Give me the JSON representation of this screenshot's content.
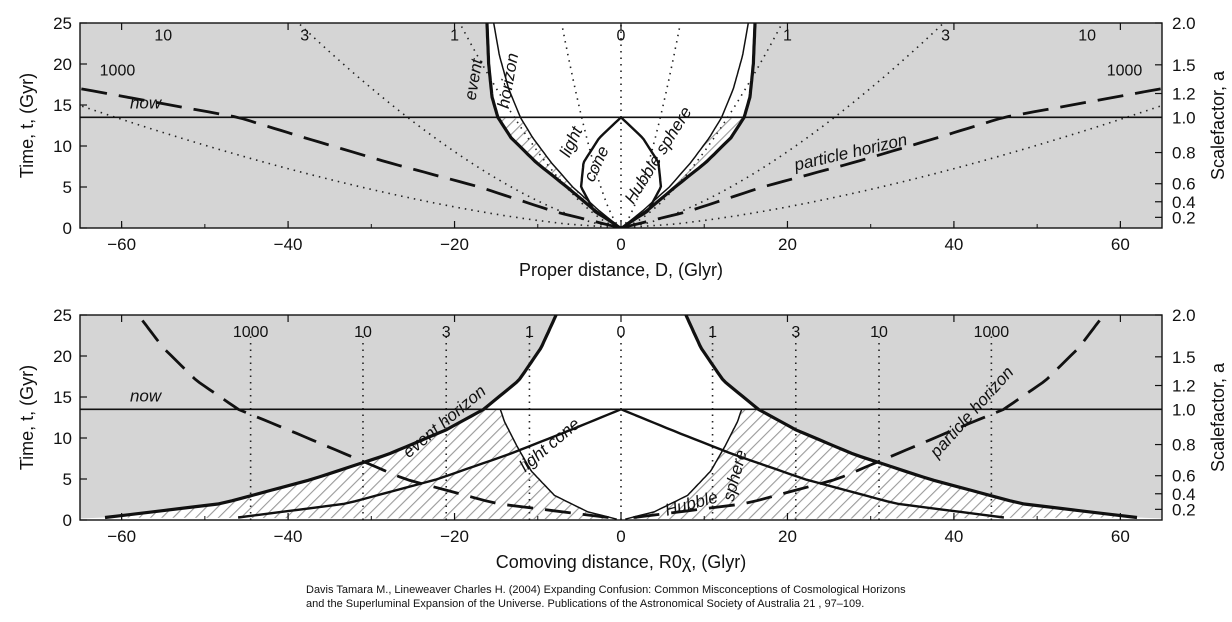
{
  "chart_data": [
    {
      "type": "line",
      "xlabel": "Proper distance, D, (Glyr)",
      "ylabel": "Time, t, (Gyr)",
      "y2label": "Scalefactor, a",
      "xlim": [
        -65,
        65
      ],
      "ylim": [
        0,
        25
      ],
      "xticks": [
        -60,
        -40,
        -20,
        0,
        20,
        40,
        60
      ],
      "yticks": [
        0,
        5,
        10,
        15,
        20,
        25
      ],
      "scalefactor_ticks": [
        0.2,
        0.4,
        0.6,
        0.8,
        1.0,
        1.2,
        1.5,
        2.0
      ],
      "redshift_labels": [
        "10",
        "3",
        "1",
        "0",
        "1",
        "3",
        "10",
        "1000",
        "1000"
      ],
      "annotations": [
        "now",
        "event",
        "horizon",
        "light",
        "cone",
        "Hubble sphere",
        "particle horizon"
      ],
      "now_t": 13.5,
      "series": [
        {
          "curve": "event horizon",
          "t": [
            0.3,
            2,
            5,
            8,
            11,
            13.5,
            16,
            20,
            25
          ],
          "x": [
            0.5,
            3,
            6.5,
            10.2,
            13.2,
            14.8,
            15.5,
            15.9,
            16.1
          ]
        },
        {
          "curve": "light cone",
          "t": [
            0,
            2,
            5,
            8,
            11,
            13.5
          ],
          "x": [
            0,
            3.2,
            4.8,
            4.5,
            2.6,
            0
          ]
        },
        {
          "curve": "Hubble sphere",
          "t": [
            0,
            2,
            5,
            8,
            11,
            13.5,
            17,
            21,
            25
          ],
          "x": [
            0,
            2.5,
            5.8,
            8.4,
            10.6,
            12.1,
            13.5,
            14.6,
            15.3
          ]
        },
        {
          "curve": "particle horizon",
          "t": [
            0,
            2,
            5,
            8,
            11,
            13.5,
            17
          ],
          "x": [
            0,
            8,
            17,
            28,
            38,
            46,
            65
          ]
        }
      ]
    },
    {
      "type": "line",
      "xlabel": "Comoving distance, R0χ, (Glyr)",
      "ylabel": "Time, t, (Gyr)",
      "y2label": "Scalefactor, a",
      "xlim": [
        -65,
        65
      ],
      "ylim": [
        0,
        25
      ],
      "xticks": [
        -60,
        -40,
        -20,
        0,
        20,
        40,
        60
      ],
      "yticks": [
        0,
        5,
        10,
        15,
        20,
        25
      ],
      "scalefactor_ticks": [
        0.2,
        0.4,
        0.6,
        0.8,
        1.0,
        1.2,
        1.5,
        2.0
      ],
      "redshift_labels": [
        "1000",
        "10",
        "3",
        "1",
        "0",
        "1",
        "3",
        "10",
        "1000"
      ],
      "redshift_x": [
        44.5,
        31.0,
        21.0,
        11.0,
        0,
        11.0,
        21.0,
        31.0,
        44.5
      ],
      "annotations": [
        "now",
        "event horizon",
        "light cone",
        "Hubble",
        "sphere",
        "particle horizon"
      ],
      "now_t": 13.5,
      "series": [
        {
          "curve": "event horizon",
          "t": [
            0.3,
            2,
            5,
            8,
            11,
            13.5,
            17,
            21,
            25
          ],
          "x": [
            62,
            48,
            37,
            28,
            21,
            16.5,
            12.3,
            9.6,
            7.8
          ]
        },
        {
          "curve": "light cone",
          "t": [
            0.3,
            2,
            5,
            8,
            11,
            13.5
          ],
          "x": [
            46,
            33,
            22,
            13.5,
            6,
            0
          ]
        },
        {
          "curve": "Hubble sphere",
          "t": [
            0.1,
            1,
            3,
            6,
            9,
            12,
            13.5
          ],
          "x": [
            0.5,
            4,
            8,
            10.8,
            12.5,
            14,
            14.5
          ]
        },
        {
          "curve": "particle horizon",
          "t": [
            0.3,
            2,
            5,
            8,
            11,
            13.5,
            17,
            21,
            25
          ],
          "x": [
            1.5,
            15,
            26,
            33,
            40,
            46,
            51,
            55,
            58
          ]
        }
      ]
    }
  ],
  "caption_lines": [
    "Davis Tamara M., Lineweaver Charles H. (2004) Expanding Confusion: Common Misconceptions of Cosmological Horizons",
    "and the Superluminal Expansion of the Universe. Publications of the Astronomical Society of Australia 21 , 97–109."
  ]
}
